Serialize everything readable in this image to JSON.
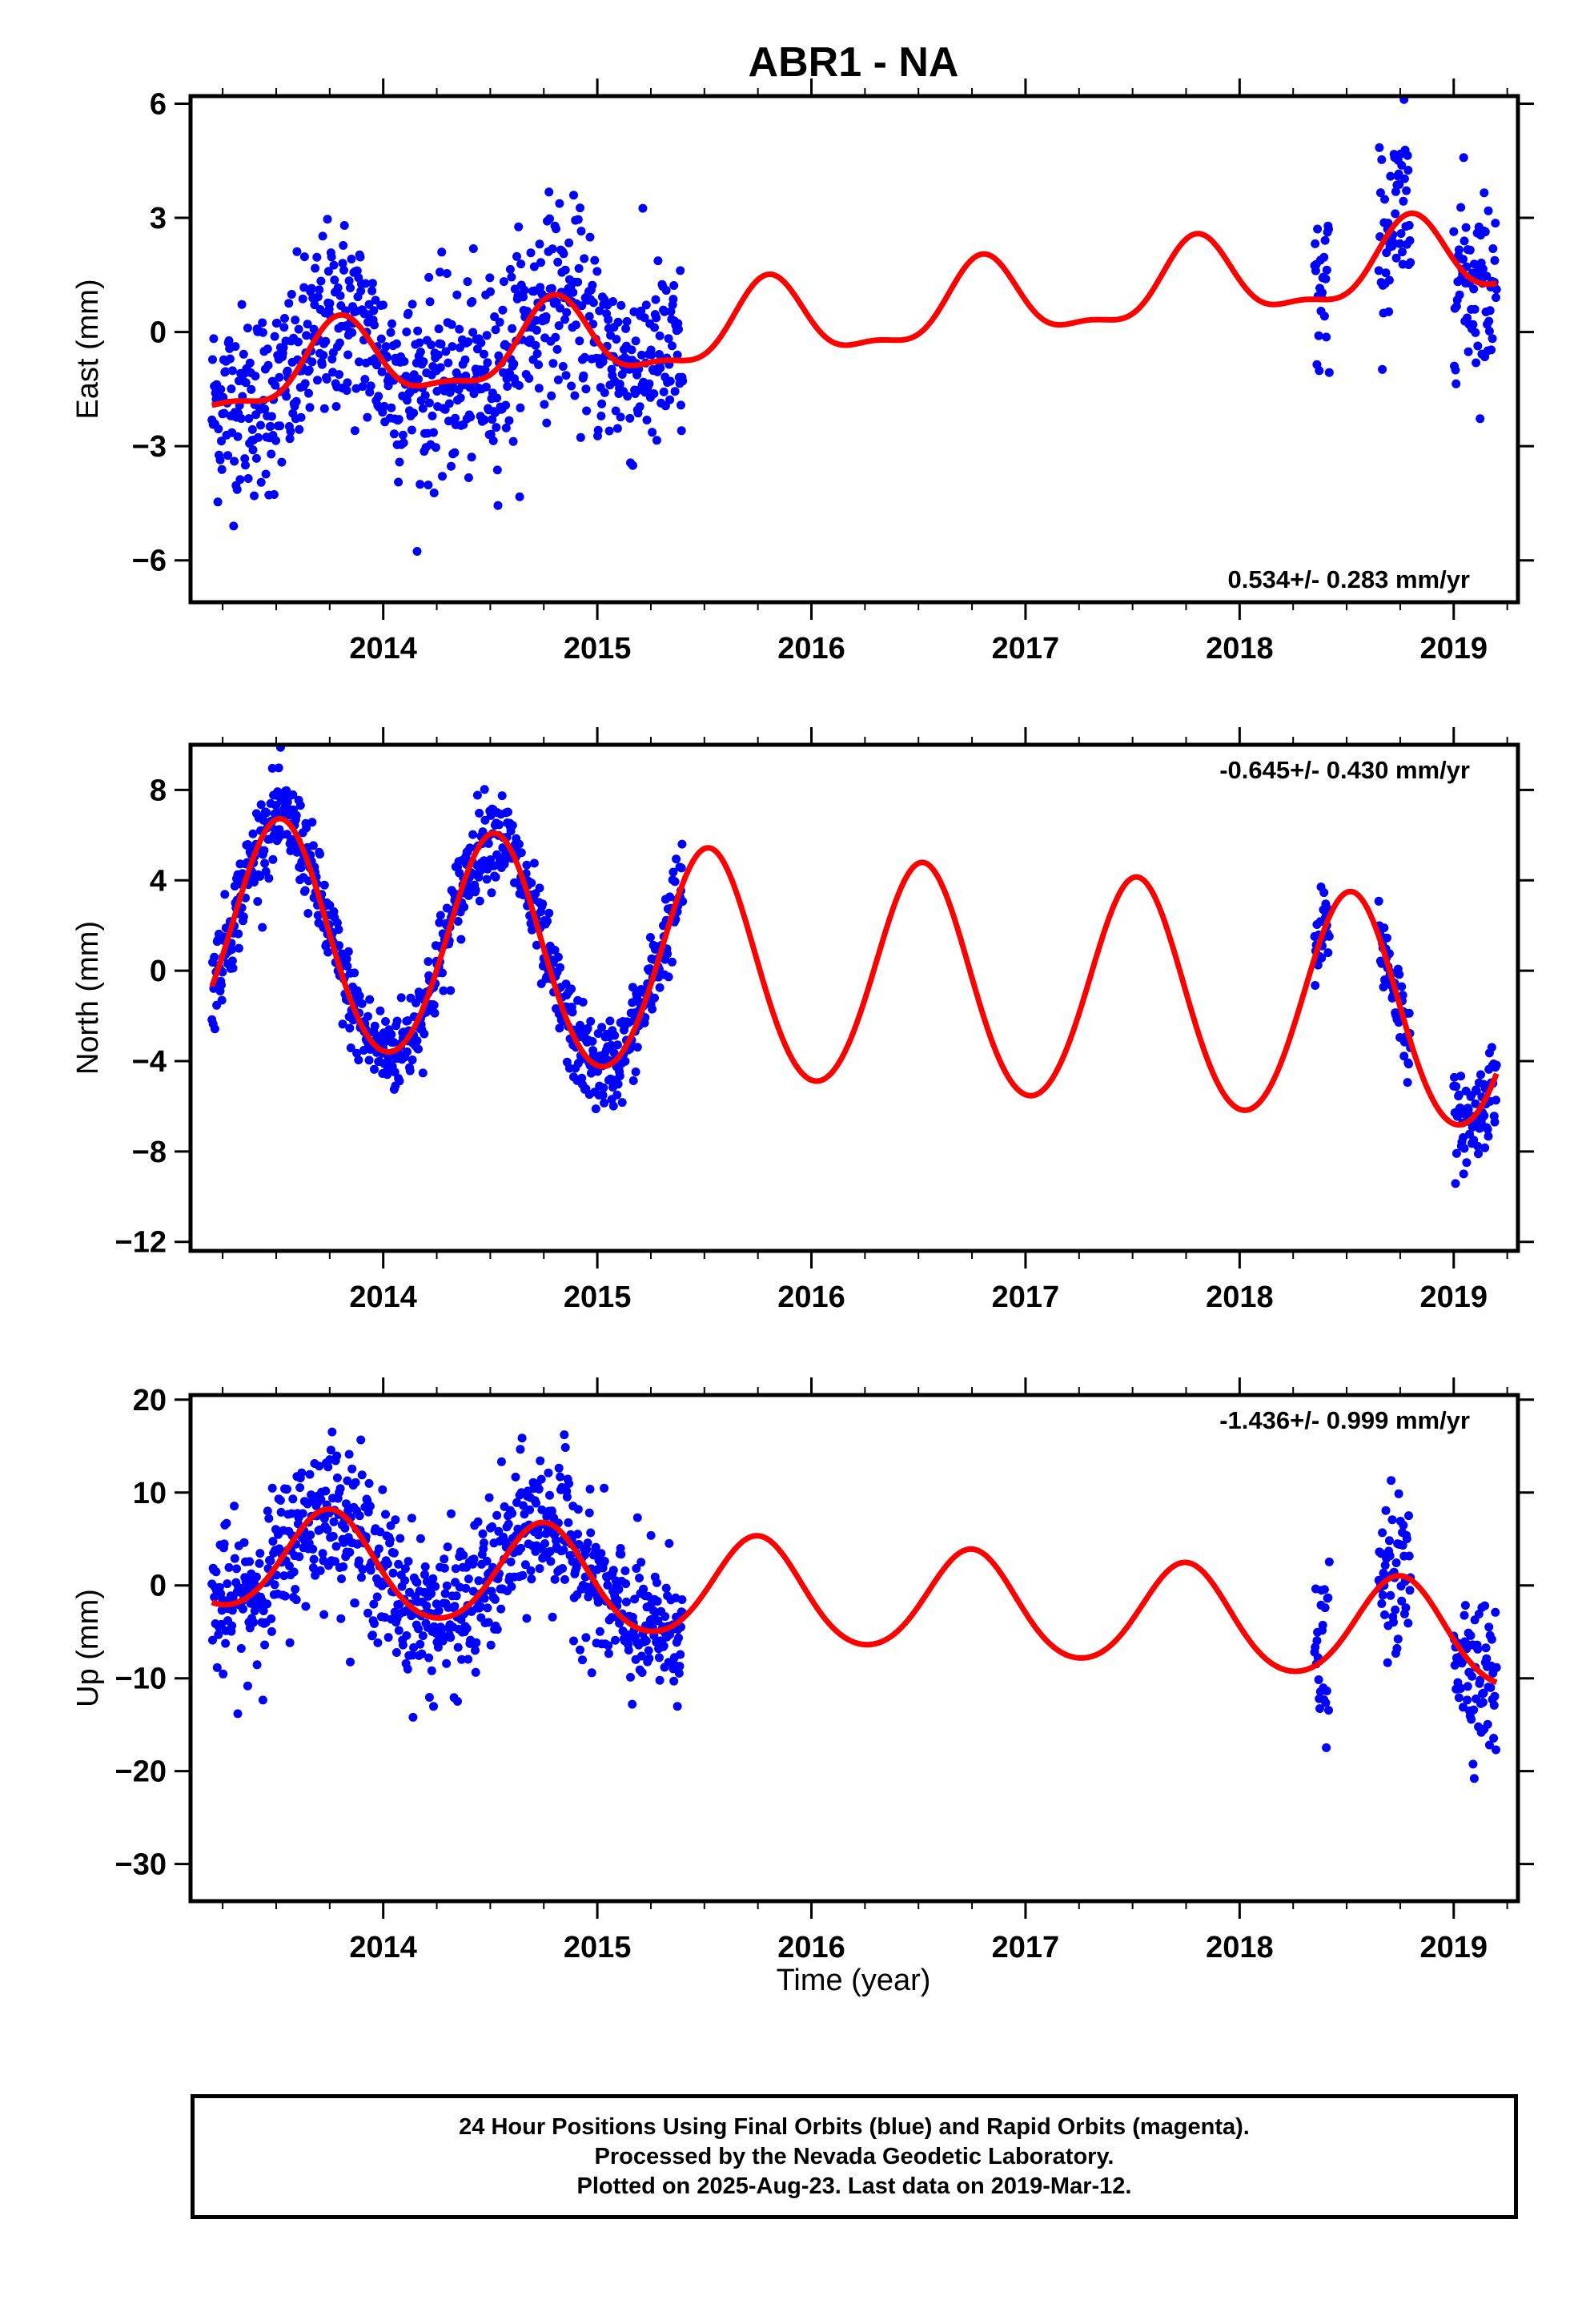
{
  "title": "ABR1 - NA",
  "xlabel": "Time (year)",
  "colors": {
    "final_orbits": "#0000ff",
    "model": "#ff0000",
    "frame": "#000000"
  },
  "caption": {
    "line1": "24 Hour Positions Using Final Orbits (blue) and Rapid Orbits (magenta).",
    "line2": "Processed by the Nevada Geodetic Laboratory.",
    "line3": "Plotted on 2025-Aug-23. Last data on 2019-Mar-12."
  },
  "chart_data": [
    {
      "type": "scatter",
      "ylabel": "East (mm)",
      "rate_label": "0.534+/- 0.283 mm/yr",
      "xlim": [
        2013.1,
        2019.3
      ],
      "ylim": [
        -7.1,
        6.2
      ],
      "xticks": [
        2014,
        2015,
        2016,
        2017,
        2018,
        2019
      ],
      "xticklabels": [
        "2014",
        "2015",
        "2016",
        "2017",
        "2018",
        "2019"
      ],
      "yticks": [
        -6,
        -3,
        0,
        3,
        6
      ],
      "yticklabels": [
        "−6",
        "−3",
        "0",
        "3",
        "6"
      ],
      "data_spans": [
        [
          2013.2,
          2015.4
        ],
        [
          2018.35,
          2018.42
        ],
        [
          2018.65,
          2018.8
        ],
        [
          2019.0,
          2019.2
        ]
      ],
      "scatter_sd": 1.25,
      "model": {
        "t0": 2016.2,
        "offset": 0.38,
        "trend": 0.534,
        "annual_amp": 1.0,
        "annual_peak": 2013.8,
        "semiannual_amp": 0.35,
        "semiannual_peak": 2013.8
      },
      "series": [
        {
          "name": "Final Orbits",
          "color": "#0000ff",
          "marker": "dot"
        },
        {
          "name": "Model",
          "color": "#ff0000",
          "marker": "line"
        }
      ]
    },
    {
      "type": "scatter",
      "ylabel": "North (mm)",
      "rate_label": "-0.645+/- 0.430 mm/yr",
      "xlim": [
        2013.1,
        2019.3
      ],
      "ylim": [
        -12.4,
        10.0
      ],
      "xticks": [
        2014,
        2015,
        2016,
        2017,
        2018,
        2019
      ],
      "xticklabels": [
        "2014",
        "2015",
        "2016",
        "2017",
        "2018",
        "2019"
      ],
      "yticks": [
        -12,
        -8,
        -4,
        0,
        4,
        8
      ],
      "yticklabels": [
        "−12",
        "−8",
        "−4",
        "0",
        "4",
        "8"
      ],
      "data_spans": [
        [
          2013.2,
          2015.4
        ],
        [
          2018.35,
          2018.42
        ],
        [
          2018.65,
          2018.8
        ],
        [
          2019.0,
          2019.2
        ]
      ],
      "scatter_sd": 1.0,
      "model": {
        "t0": 2016.2,
        "offset": -0.3,
        "trend": -0.645,
        "annual_amp": 5.0,
        "annual_peak": 2013.52,
        "semiannual_amp": 0.3,
        "semiannual_peak": 2013.52
      },
      "series": [
        {
          "name": "Final Orbits",
          "color": "#0000ff",
          "marker": "dot"
        },
        {
          "name": "Model",
          "color": "#ff0000",
          "marker": "line"
        }
      ]
    },
    {
      "type": "scatter",
      "ylabel": "Up (mm)",
      "rate_label": "-1.436+/- 0.999 mm/yr",
      "xlim": [
        2013.1,
        2019.3
      ],
      "ylim": [
        -34.0,
        20.5
      ],
      "xticks": [
        2014,
        2015,
        2016,
        2017,
        2018,
        2019
      ],
      "xticklabels": [
        "2014",
        "2015",
        "2016",
        "2017",
        "2018",
        "2019"
      ],
      "yticks": [
        -30,
        -20,
        -10,
        0,
        10,
        20
      ],
      "yticklabels": [
        "−30",
        "−20",
        "−10",
        "0",
        "10",
        "20"
      ],
      "data_spans": [
        [
          2013.2,
          2015.4
        ],
        [
          2018.35,
          2018.42
        ],
        [
          2018.65,
          2018.8
        ],
        [
          2019.0,
          2019.2
        ]
      ],
      "scatter_sd": 4.0,
      "model": {
        "t0": 2016.2,
        "offset": -1.3,
        "trend": -1.436,
        "annual_amp": 5.5,
        "annual_peak": 2013.75,
        "semiannual_amp": 0.5,
        "semiannual_peak": 2013.75
      },
      "series": [
        {
          "name": "Final Orbits",
          "color": "#0000ff",
          "marker": "dot"
        },
        {
          "name": "Model",
          "color": "#ff0000",
          "marker": "line"
        }
      ]
    }
  ]
}
